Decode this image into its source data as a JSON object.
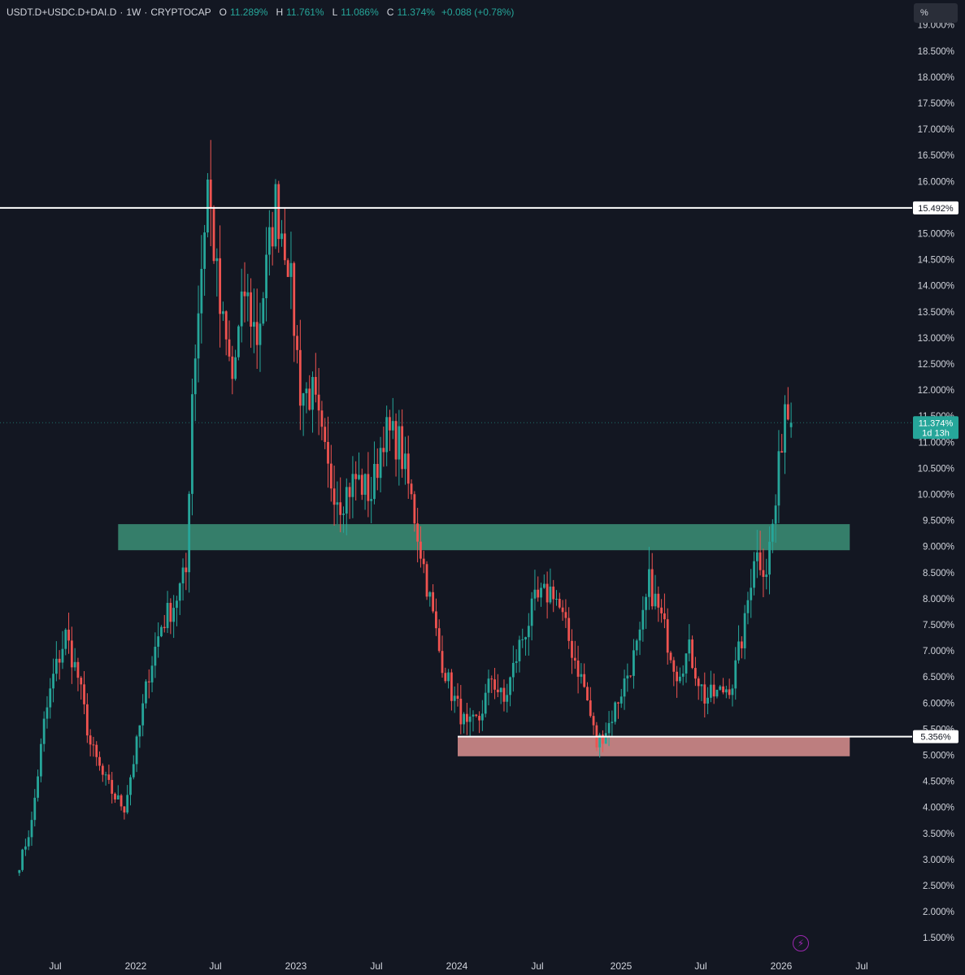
{
  "legend": {
    "symbol": "USDT.D+USDC.D+DAI.D",
    "interval": "1W",
    "exchange": "CRYPTOCAP",
    "sep": "·",
    "open_label": "O",
    "open": "11.289%",
    "high_label": "H",
    "high": "11.761%",
    "low_label": "L",
    "low": "11.086%",
    "close_label": "C",
    "close": "11.374%",
    "change": "+0.088 (+0.78%)"
  },
  "toolbar": {
    "percent_button": "%"
  },
  "price_scale": {
    "labels": [
      "19.000%",
      "18.500%",
      "18.000%",
      "17.500%",
      "17.000%",
      "16.500%",
      "16.000%",
      "15.500%",
      "15.000%",
      "14.500%",
      "14.000%",
      "13.500%",
      "13.000%",
      "12.500%",
      "12.000%",
      "11.500%",
      "11.000%",
      "10.500%",
      "10.000%",
      "9.500%",
      "9.000%",
      "8.500%",
      "8.000%",
      "7.500%",
      "7.000%",
      "6.500%",
      "6.000%",
      "5.500%",
      "5.000%",
      "4.500%",
      "4.000%",
      "3.500%",
      "3.000%",
      "2.500%",
      "2.000%",
      "1.500%"
    ],
    "current_price_tag": "11.374%",
    "countdown": "1d 13h",
    "resistance_tag": "15.492%",
    "support_tag": "5.356%"
  },
  "time_axis": {
    "labels": [
      "Jul",
      "2022",
      "Jul",
      "2023",
      "Jul",
      "2024",
      "Jul",
      "2025",
      "Jul",
      "2026",
      "Jul"
    ]
  },
  "colors": {
    "background": "#131722",
    "up": "#26a69a",
    "down": "#ef5350",
    "demand_zone": "#3a8a72",
    "support_zone": "#d08a8a",
    "level_line": "#ffffff"
  },
  "chart_data": {
    "type": "candlestick",
    "timeframe": "1W",
    "y_scale": "percent",
    "ylim": [
      1.0,
      19.2
    ],
    "time_range": [
      "2021-04",
      "2026-07"
    ],
    "horizontal_lines": [
      {
        "value": 15.492
      },
      {
        "value": 5.356
      }
    ],
    "zones": [
      {
        "from_date": "2021-11-22",
        "to_date": "2026-06-08",
        "low": 8.93,
        "high": 9.43,
        "color": "demand_zone"
      },
      {
        "from_date": "2024-01-01",
        "to_date": "2026-06-08",
        "low": 4.98,
        "high": 5.36,
        "color": "support_zone"
      }
    ],
    "closes": [
      {
        "date": "2021-04-12",
        "value": 2.9
      },
      {
        "date": "2021-05-10",
        "value": 3.7
      },
      {
        "date": "2021-06-07",
        "value": 5.6
      },
      {
        "date": "2021-06-28",
        "value": 6.5
      },
      {
        "date": "2021-07-26",
        "value": 7.3
      },
      {
        "date": "2021-08-23",
        "value": 6.5
      },
      {
        "date": "2021-09-20",
        "value": 5.2
      },
      {
        "date": "2021-10-18",
        "value": 4.6
      },
      {
        "date": "2021-11-15",
        "value": 4.2
      },
      {
        "date": "2021-12-06",
        "value": 4.0
      },
      {
        "date": "2022-01-03",
        "value": 5.2
      },
      {
        "date": "2022-01-31",
        "value": 6.6
      },
      {
        "date": "2022-02-28",
        "value": 7.5
      },
      {
        "date": "2022-03-28",
        "value": 7.9
      },
      {
        "date": "2022-04-25",
        "value": 8.5
      },
      {
        "date": "2022-05-09",
        "value": 12.0
      },
      {
        "date": "2022-06-13",
        "value": 16.0
      },
      {
        "date": "2022-07-11",
        "value": 13.5
      },
      {
        "date": "2022-08-08",
        "value": 12.2
      },
      {
        "date": "2022-09-05",
        "value": 13.9
      },
      {
        "date": "2022-10-03",
        "value": 13.0
      },
      {
        "date": "2022-11-14",
        "value": 15.6
      },
      {
        "date": "2022-12-12",
        "value": 14.6
      },
      {
        "date": "2023-01-09",
        "value": 12.0
      },
      {
        "date": "2023-02-06",
        "value": 11.9
      },
      {
        "date": "2023-03-13",
        "value": 10.4
      },
      {
        "date": "2023-04-10",
        "value": 9.9
      },
      {
        "date": "2023-05-15",
        "value": 10.3
      },
      {
        "date": "2023-06-19",
        "value": 10.0
      },
      {
        "date": "2023-07-17",
        "value": 11.2
      },
      {
        "date": "2023-08-21",
        "value": 11.0
      },
      {
        "date": "2023-09-25",
        "value": 9.6
      },
      {
        "date": "2023-10-23",
        "value": 8.3
      },
      {
        "date": "2023-11-20",
        "value": 7.0
      },
      {
        "date": "2023-12-18",
        "value": 6.2
      },
      {
        "date": "2024-01-22",
        "value": 5.5
      },
      {
        "date": "2024-02-19",
        "value": 5.7
      },
      {
        "date": "2024-03-18",
        "value": 6.5
      },
      {
        "date": "2024-04-15",
        "value": 6.0
      },
      {
        "date": "2024-05-20",
        "value": 7.1
      },
      {
        "date": "2024-06-24",
        "value": 7.9
      },
      {
        "date": "2024-08-05",
        "value": 8.2
      },
      {
        "date": "2024-09-09",
        "value": 7.2
      },
      {
        "date": "2024-10-14",
        "value": 6.3
      },
      {
        "date": "2024-11-11",
        "value": 5.2
      },
      {
        "date": "2024-12-09",
        "value": 5.6
      },
      {
        "date": "2025-01-13",
        "value": 6.4
      },
      {
        "date": "2025-02-17",
        "value": 7.2
      },
      {
        "date": "2025-03-10",
        "value": 8.3
      },
      {
        "date": "2025-04-07",
        "value": 7.6
      },
      {
        "date": "2025-05-12",
        "value": 6.6
      },
      {
        "date": "2025-06-09",
        "value": 7.0
      },
      {
        "date": "2025-07-14",
        "value": 6.1
      },
      {
        "date": "2025-08-18",
        "value": 6.2
      },
      {
        "date": "2025-09-15",
        "value": 6.4
      },
      {
        "date": "2025-10-13",
        "value": 7.5
      },
      {
        "date": "2025-11-03",
        "value": 8.9
      },
      {
        "date": "2025-12-01",
        "value": 8.6
      },
      {
        "date": "2025-12-22",
        "value": 9.8
      },
      {
        "date": "2026-01-12",
        "value": 11.8
      },
      {
        "date": "2026-01-26",
        "value": 11.374
      }
    ],
    "last_bar": {
      "open": 11.289,
      "high": 11.761,
      "low": 11.086,
      "close": 11.374
    }
  }
}
